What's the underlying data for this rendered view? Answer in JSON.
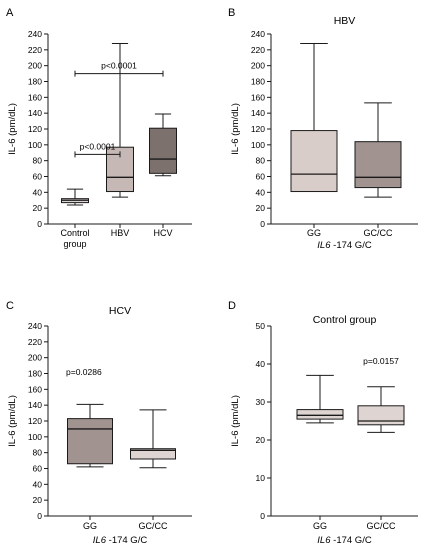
{
  "chart_data": [
    {
      "type": "box",
      "panel": "A",
      "title": "",
      "ylabel": "IL-6 (pm/dL)",
      "xlabel": "",
      "ylim": [
        0,
        240
      ],
      "yticks": [
        0,
        20,
        40,
        60,
        80,
        100,
        120,
        140,
        160,
        180,
        200,
        220,
        240
      ],
      "categories": [
        "Control group",
        "HBV",
        "HCV"
      ],
      "boxes": [
        {
          "min": 24,
          "q1": 27,
          "median": 30,
          "q3": 32,
          "max": 44,
          "color": "#ded4d1"
        },
        {
          "min": 34,
          "q1": 41,
          "median": 59,
          "q3": 97,
          "max": 228,
          "color": "#c6b9b5"
        },
        {
          "min": 61,
          "q1": 64,
          "median": 82,
          "q3": 121,
          "max": 139,
          "color": "#7d716d"
        }
      ],
      "annotations": [
        {
          "text": "p<0.0001",
          "from": 0,
          "to": 1,
          "y": 88
        },
        {
          "text": "p<0.0001",
          "from": 0,
          "to": 2,
          "y": 190
        }
      ]
    },
    {
      "type": "box",
      "panel": "B",
      "title": "HBV",
      "ylabel": "IL-6 (pm/dL)",
      "xlabel": "-174 G/C",
      "xlabel_gene": "IL6",
      "ylim": [
        0,
        240
      ],
      "yticks": [
        0,
        20,
        40,
        60,
        80,
        100,
        120,
        140,
        160,
        180,
        200,
        220,
        240
      ],
      "categories": [
        "GG",
        "GC/CC"
      ],
      "boxes": [
        {
          "min": 41,
          "q1": 41,
          "median": 63,
          "q3": 118,
          "max": 228,
          "color": "#d9cdc9"
        },
        {
          "min": 34,
          "q1": 46,
          "median": 59,
          "q3": 104,
          "max": 153,
          "color": "#a09390"
        }
      ],
      "annotations": []
    },
    {
      "type": "box",
      "panel": "C",
      "title": "HCV",
      "ylabel": "IL-6 (pm/dL)",
      "xlabel": "-174 G/C",
      "xlabel_gene": "IL6",
      "ylim": [
        0,
        240
      ],
      "yticks": [
        0,
        20,
        40,
        60,
        80,
        100,
        120,
        140,
        160,
        180,
        200,
        220,
        240
      ],
      "categories": [
        "GG",
        "GC/CC"
      ],
      "boxes": [
        {
          "min": 62,
          "q1": 66,
          "median": 110,
          "q3": 123,
          "max": 141,
          "color": "#a09390"
        },
        {
          "min": 61,
          "q1": 72,
          "median": 83,
          "q3": 85,
          "max": 134,
          "color": "#ded4d1"
        }
      ],
      "annotations": [
        {
          "text": "p=0.0286",
          "x_at": 0,
          "y": 178
        }
      ]
    },
    {
      "type": "box",
      "panel": "D",
      "title": "Control group",
      "ylabel": "IL-6 (pm/dL)",
      "xlabel": "-174 G/C",
      "xlabel_gene": "IL6",
      "ylim": [
        0,
        50
      ],
      "yticks": [
        0,
        10,
        20,
        30,
        40,
        50
      ],
      "categories": [
        "GG",
        "GC/CC"
      ],
      "boxes": [
        {
          "min": 24.5,
          "q1": 25.5,
          "median": 26.5,
          "q3": 28,
          "max": 37,
          "color": "#ded4d1"
        },
        {
          "min": 22,
          "q1": 24,
          "median": 25,
          "q3": 29,
          "max": 34,
          "color": "#ded4d1"
        }
      ],
      "annotations": [
        {
          "text": "p=0.0157",
          "x_at": 1,
          "y": 40
        }
      ]
    }
  ]
}
